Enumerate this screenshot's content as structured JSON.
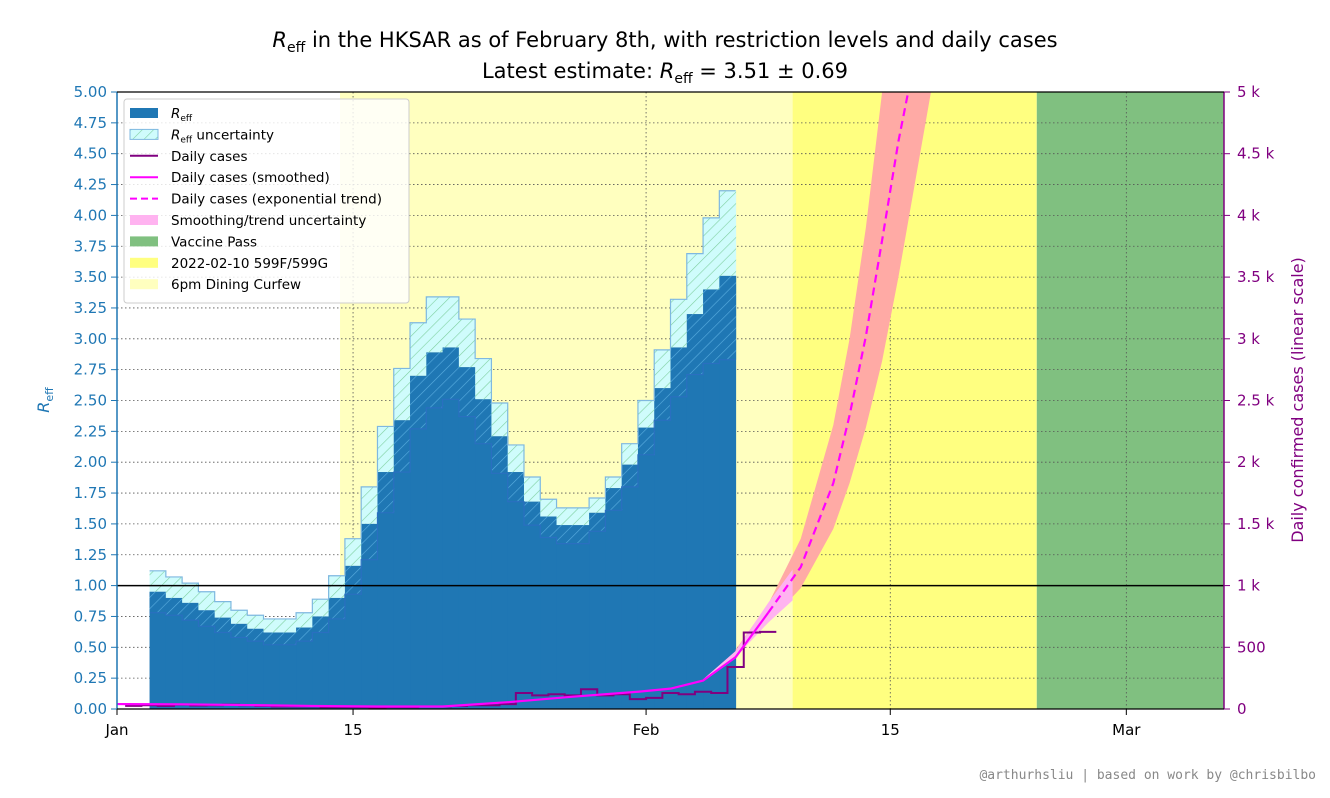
{
  "chart_data": {
    "type": "bar",
    "title_prefix": "in the HKSAR as of February 8th, with restriction levels and daily cases",
    "title_symbol": "R",
    "title_symbol_sub": "eff",
    "subtitle_prefix": "Latest estimate:",
    "subtitle_formula": "= 3.51 ± 0.69",
    "ylabel_left_symbol": "R",
    "ylabel_left_sub": "eff",
    "ylabel_right": "Daily confirmed cases (linear scale)",
    "credit": "@arthurhsliu | based on work by @chrisbilbo",
    "x_domain_days": [
      0,
      68
    ],
    "x_ticks": [
      {
        "day": 0,
        "label": "Jan"
      },
      {
        "day": 14.5,
        "label": "15"
      },
      {
        "day": 32.5,
        "label": "Feb"
      },
      {
        "day": 47.5,
        "label": "15"
      },
      {
        "day": 62,
        "label": "Mar"
      }
    ],
    "ylim_left": [
      0,
      5
    ],
    "ylim_right": [
      0,
      5000
    ],
    "y_ticks_left": [
      "0.00",
      "0.25",
      "0.50",
      "0.75",
      "1.00",
      "1.25",
      "1.50",
      "1.75",
      "2.00",
      "2.25",
      "2.50",
      "2.75",
      "3.00",
      "3.25",
      "3.50",
      "3.75",
      "4.00",
      "4.25",
      "4.50",
      "4.75",
      "5.00"
    ],
    "y_ticks_right": [
      {
        "value": 0,
        "label": "0"
      },
      {
        "value": 500,
        "label": "500"
      },
      {
        "value": 1000,
        "label": "1 k"
      },
      {
        "value": 1500,
        "label": "1.5 k"
      },
      {
        "value": 2000,
        "label": "2 k"
      },
      {
        "value": 2500,
        "label": "2.5 k"
      },
      {
        "value": 3000,
        "label": "3 k"
      },
      {
        "value": 3500,
        "label": "3.5 k"
      },
      {
        "value": 4000,
        "label": "4 k"
      },
      {
        "value": 4500,
        "label": "4.5 k"
      },
      {
        "value": 5000,
        "label": "5 k"
      }
    ],
    "reference_line_reff": 1.0,
    "restriction_periods": [
      {
        "name": "6pm Dining Curfew",
        "start": 13.7,
        "end": 41.5,
        "color": "#ffffbf"
      },
      {
        "name": "2022-02-10 599F/599G",
        "start": 41.5,
        "end": 56.5,
        "color": "#ffff80"
      },
      {
        "name": "Vaccine Pass",
        "start": 56.5,
        "end": 68,
        "color": "#80c080"
      }
    ],
    "reff_start_day": 2,
    "reff_series": {
      "name": "R_eff",
      "values": [
        0.95,
        0.9,
        0.86,
        0.8,
        0.74,
        0.69,
        0.65,
        0.62,
        0.62,
        0.66,
        0.75,
        0.9,
        1.16,
        1.5,
        1.92,
        2.34,
        2.7,
        2.89,
        2.93,
        2.77,
        2.51,
        2.21,
        1.92,
        1.68,
        1.56,
        1.49,
        1.49,
        1.59,
        1.79,
        1.98,
        2.28,
        2.6,
        2.93,
        3.2,
        3.4,
        3.51
      ]
    },
    "reff_uncertainty": {
      "name": "R_eff uncertainty",
      "lower": [
        0.78,
        0.76,
        0.72,
        0.67,
        0.62,
        0.58,
        0.55,
        0.52,
        0.52,
        0.55,
        0.62,
        0.73,
        0.93,
        1.21,
        1.59,
        1.92,
        2.27,
        2.44,
        2.51,
        2.37,
        2.15,
        1.91,
        1.68,
        1.49,
        1.39,
        1.34,
        1.34,
        1.44,
        1.61,
        1.8,
        2.06,
        2.34,
        2.53,
        2.71,
        2.8,
        2.83
      ],
      "upper": [
        1.12,
        1.07,
        1.02,
        0.95,
        0.87,
        0.8,
        0.76,
        0.73,
        0.73,
        0.78,
        0.89,
        1.08,
        1.38,
        1.8,
        2.29,
        2.76,
        3.13,
        3.34,
        3.34,
        3.16,
        2.84,
        2.48,
        2.14,
        1.88,
        1.7,
        1.63,
        1.63,
        1.71,
        1.88,
        2.15,
        2.5,
        2.91,
        3.32,
        3.69,
        3.98,
        4.2
      ]
    },
    "daily_cases": {
      "name": "Daily cases",
      "start_day": 0,
      "values": [
        25,
        30,
        25,
        35,
        28,
        30,
        35,
        30,
        25,
        20,
        20,
        20,
        15,
        15,
        15,
        10,
        15,
        15,
        20,
        20,
        25,
        30,
        30,
        40,
        130,
        110,
        120,
        110,
        160,
        110,
        120,
        80,
        90,
        130,
        120,
        140,
        130,
        340,
        620,
        625
      ]
    },
    "smoothed_cases": {
      "name": "Daily cases (smoothed)",
      "x": [
        0,
        4,
        8,
        12,
        16,
        20,
        24,
        28,
        32,
        34,
        36,
        38,
        40
      ],
      "y": [
        40,
        38,
        32,
        25,
        20,
        20,
        55,
        100,
        140,
        165,
        230,
        420,
        780
      ]
    },
    "trend_cases": {
      "name": "Daily cases (exponential trend)",
      "x": [
        40,
        42,
        44,
        45,
        46,
        47,
        48,
        48.6
      ],
      "y": [
        780,
        1150,
        1830,
        2380,
        3020,
        3800,
        4600,
        5000
      ]
    },
    "trend_band": {
      "name": "Smoothing/trend uncertainty",
      "x": [
        38,
        40,
        42,
        44,
        45,
        46,
        47,
        48,
        49,
        50
      ],
      "lower": [
        440,
        700,
        980,
        1460,
        1830,
        2280,
        2820,
        3500,
        4250,
        5000
      ],
      "upper": [
        480,
        850,
        1380,
        2300,
        3000,
        3900,
        5000,
        5000,
        5000,
        5000
      ]
    },
    "legend": [
      {
        "kind": "patch",
        "symbol": "R",
        "sub": "eff",
        "label": "",
        "color": "#1f77b4"
      },
      {
        "kind": "hatch",
        "symbol": "R",
        "sub": "eff",
        "label": " uncertainty",
        "color": "#cffcfc"
      },
      {
        "kind": "line",
        "label": "Daily cases",
        "color": "#800080"
      },
      {
        "kind": "line",
        "label": "Daily cases (smoothed)",
        "color": "#ff00ff"
      },
      {
        "kind": "dash",
        "label": "Daily cases (exponential trend)",
        "color": "#ff00ff"
      },
      {
        "kind": "patch",
        "label": "Smoothing/trend uncertainty",
        "color": "#ffb3f0"
      },
      {
        "kind": "patch",
        "label": "Vaccine Pass",
        "color": "#80c080"
      },
      {
        "kind": "patch",
        "label": "2022-02-10 599F/599G",
        "color": "#ffff80"
      },
      {
        "kind": "patch",
        "label": "6pm Dining Curfew",
        "color": "#ffffbf"
      }
    ],
    "legend_position": "upper-left",
    "grid": true,
    "colors": {
      "reff": "#1f77b4",
      "reff_axis": "#1f77b4",
      "cases_axis": "#800080",
      "band_trend": "#ffaaa5"
    }
  }
}
